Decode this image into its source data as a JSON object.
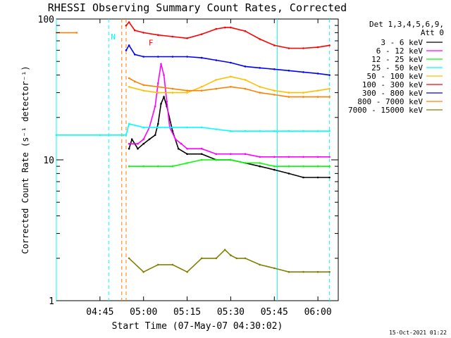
{
  "chart_data": {
    "type": "line",
    "title": "RHESSI Observing Summary Count Rates, Corrected",
    "xlabel": "Start Time (07-May-07 04:30:02)",
    "ylabel": "Corrected Count Rate (s⁻¹ detector⁻¹)",
    "yscale": "log",
    "ylim": [
      1,
      100
    ],
    "xlim": [
      0,
      97
    ],
    "x_unit": "minutes after 04:30:02",
    "x_ticks": [
      {
        "label": "04:45",
        "x": 15
      },
      {
        "label": "05:00",
        "x": 30
      },
      {
        "label": "05:15",
        "x": 45
      },
      {
        "label": "05:30",
        "x": 60
      },
      {
        "label": "05:45",
        "x": 75
      },
      {
        "label": "06:00",
        "x": 90
      }
    ],
    "y_ticks": [
      {
        "label": "1",
        "y": 1
      },
      {
        "label": "10",
        "y": 10
      },
      {
        "label": "100",
        "y": 100
      }
    ],
    "legend_title": [
      "Det 1,3,4,5,6,9,",
      "Att 0"
    ],
    "legend_placement": "right",
    "series": [
      {
        "name": "3 - 6 keV",
        "color": "#000000",
        "x": [
          25,
          26,
          27,
          28,
          30,
          32,
          34,
          35,
          36,
          37,
          38,
          40,
          42,
          45,
          50,
          55,
          60,
          65,
          70,
          75,
          80,
          85,
          90,
          94
        ],
        "y": [
          12,
          14,
          13,
          12,
          13,
          14,
          15,
          18,
          25,
          28,
          24,
          16,
          12,
          11,
          11,
          10,
          10,
          9.5,
          9,
          8.5,
          8,
          7.5,
          7.5,
          7.5
        ]
      },
      {
        "name": "6 - 12 keV",
        "color": "#ff00ff",
        "x": [
          25,
          28,
          30,
          32,
          34,
          35,
          36,
          37,
          38,
          39,
          41,
          43,
          45,
          50,
          55,
          60,
          65,
          70,
          75,
          80,
          85,
          90,
          94
        ],
        "y": [
          13,
          13,
          14,
          17,
          24,
          35,
          48,
          40,
          26,
          17,
          14,
          13,
          12,
          12,
          11,
          11,
          11,
          10.5,
          10.5,
          10.5,
          10.5,
          10.5,
          10.5
        ]
      },
      {
        "name": "12 - 25 keV",
        "color": "#00ff00",
        "x": [
          25,
          30,
          35,
          40,
          45,
          50,
          55,
          60,
          65,
          70,
          75,
          80,
          85,
          90,
          94
        ],
        "y": [
          9,
          9,
          9,
          9,
          9.5,
          10,
          10,
          10,
          9.5,
          9.5,
          9,
          9,
          9,
          9,
          9
        ]
      },
      {
        "name": "25 - 50 keV",
        "color": "#00ffff",
        "x": [
          0,
          15,
          23,
          24,
          25,
          30,
          35,
          40,
          45,
          50,
          55,
          60,
          65,
          70,
          75,
          80,
          85,
          90,
          94
        ],
        "y": [
          15,
          15,
          15,
          15,
          18,
          17,
          17,
          17,
          17,
          17,
          16.5,
          16,
          16,
          16,
          16,
          16,
          16,
          16,
          16
        ]
      },
      {
        "name": "50 - 100 keV",
        "color": "#ffbf00",
        "x": [
          25,
          30,
          35,
          40,
          45,
          50,
          55,
          60,
          65,
          70,
          75,
          80,
          85,
          90,
          94
        ],
        "y": [
          33,
          31,
          30,
          30,
          30,
          33,
          37,
          39,
          37,
          33,
          31,
          30,
          30,
          31,
          32
        ]
      },
      {
        "name": "100 - 300 keV",
        "color": "#ff0000",
        "x": [
          24,
          25,
          27,
          30,
          35,
          40,
          45,
          50,
          55,
          58,
          60,
          65,
          70,
          75,
          80,
          85,
          90,
          94
        ],
        "y": [
          90,
          95,
          83,
          80,
          77,
          75,
          73,
          78,
          85,
          87,
          87,
          82,
          72,
          65,
          62,
          62,
          63,
          65
        ]
      },
      {
        "name": "300 - 800 keV",
        "color": "#0000ff",
        "x": [
          24,
          25,
          27,
          30,
          35,
          40,
          45,
          50,
          55,
          60,
          65,
          70,
          75,
          80,
          85,
          90,
          94
        ],
        "y": [
          60,
          65,
          56,
          54,
          54,
          54,
          54,
          53,
          51,
          49,
          46,
          45,
          44,
          43,
          42,
          41,
          40
        ]
      },
      {
        "name": "800 - 7000 keV",
        "color": "#ff8000",
        "x": [
          0,
          7,
          7.3,
          14,
          15,
          16,
          20,
          21,
          24,
          25,
          27,
          30,
          35,
          40,
          45,
          50,
          55,
          60,
          65,
          70,
          75,
          80,
          85,
          90,
          94
        ],
        "y": [
          80,
          80,
          null,
          null,
          null,
          null,
          null,
          null,
          null,
          38,
          36,
          34,
          33,
          32,
          31,
          31,
          32,
          33,
          32,
          30,
          29,
          28,
          28,
          28,
          28
        ]
      },
      {
        "name": "7000 - 15000 keV",
        "color": "#808000",
        "x": [
          25,
          30,
          35,
          40,
          45,
          50,
          55,
          58,
          60,
          62,
          65,
          70,
          75,
          80,
          85,
          90,
          94
        ],
        "y": [
          2,
          1.6,
          1.8,
          1.8,
          1.6,
          2,
          2,
          2.3,
          2.1,
          2,
          2,
          1.8,
          1.7,
          1.6,
          1.6,
          1.6,
          1.6
        ]
      }
    ],
    "annotations": [
      {
        "text": "N",
        "x": 18,
        "y": 75,
        "color": "#00ffff"
      },
      {
        "text": "F",
        "x": 31,
        "y": 68,
        "color": "#ff0000"
      }
    ],
    "vlines": [
      {
        "x": 0,
        "color": "#00ffff",
        "style": "solid"
      },
      {
        "x": 18,
        "color": "#00ffff",
        "style": "dashed"
      },
      {
        "x": 22.5,
        "color": "#ff8000",
        "style": "dashed"
      },
      {
        "x": 24,
        "color": "#ff8000",
        "style": "dashed"
      },
      {
        "x": 76,
        "color": "#00ffff",
        "style": "solid"
      },
      {
        "x": 94,
        "color": "#00ffff",
        "style": "dashed"
      }
    ],
    "footer": "15-Oct-2021 01:22",
    "grid": false
  }
}
